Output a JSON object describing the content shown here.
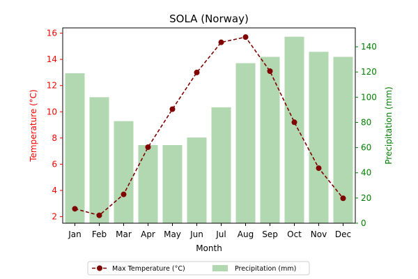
{
  "chart_data": {
    "type": "bar",
    "title": "SOLA (Norway)",
    "xlabel": "Month",
    "ylabel_left": "Temperature (°C)",
    "ylabel_right": "Precipitation (mm)",
    "categories": [
      "Jan",
      "Feb",
      "Mar",
      "Apr",
      "May",
      "Jun",
      "Jul",
      "Aug",
      "Sep",
      "Oct",
      "Nov",
      "Dec"
    ],
    "ylim_left": [
      1.5,
      16.4
    ],
    "yticks_left": [
      2,
      4,
      6,
      8,
      10,
      12,
      14,
      16
    ],
    "ylim_right": [
      0,
      155
    ],
    "yticks_right": [
      0,
      20,
      40,
      60,
      80,
      100,
      120,
      140
    ],
    "series": [
      {
        "name": "Max Temperature (°C)",
        "type": "line",
        "axis": "left",
        "color": "#800000",
        "values": [
          2.6,
          2.1,
          3.7,
          7.3,
          10.2,
          13.0,
          15.3,
          15.7,
          13.1,
          9.2,
          5.7,
          3.4
        ]
      },
      {
        "name": "Precipitation (mm)",
        "type": "bar",
        "axis": "right",
        "color": "#b2d8b2",
        "values": [
          119,
          100,
          81,
          62,
          62,
          68,
          92,
          127,
          132,
          148,
          136,
          132
        ]
      }
    ],
    "grid": false,
    "legend": "bottom-center",
    "colors": {
      "left_axis": "#ff0000",
      "right_axis": "#008000"
    }
  }
}
